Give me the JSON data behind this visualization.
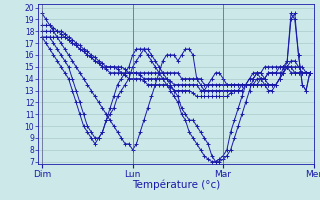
{
  "title": "",
  "xlabel": "Température (°c)",
  "ylabel": "",
  "bg_color": "#cce8e8",
  "plot_bg_color": "#cce8e8",
  "line_color": "#1a1aaa",
  "marker_color": "#1a1aaa",
  "grid_color": "#aacccc",
  "axis_color": "#1a1aaa",
  "text_color": "#1a1aaa",
  "ylim": [
    7,
    20
  ],
  "yticks": [
    7,
    8,
    9,
    10,
    11,
    12,
    13,
    14,
    15,
    16,
    17,
    18,
    19,
    20
  ],
  "day_positions": [
    0,
    24,
    48,
    72
  ],
  "day_labels": [
    "Dim",
    "Lun",
    "Mar",
    "Mer"
  ],
  "n_points": 72,
  "series": [
    [
      17.5,
      17.5,
      17.5,
      17.5,
      17.5,
      17.5,
      17.5,
      17.3,
      17.0,
      16.8,
      16.5,
      16.3,
      16.0,
      15.8,
      15.5,
      15.3,
      15.0,
      15.0,
      15.0,
      15.0,
      15.0,
      15.0,
      14.8,
      14.5,
      14.5,
      14.5,
      14.5,
      14.5,
      14.5,
      14.5,
      14.5,
      14.5,
      14.5,
      14.5,
      14.5,
      14.5,
      14.5,
      14.0,
      14.0,
      14.0,
      14.0,
      14.0,
      14.0,
      13.5,
      13.5,
      13.5,
      13.5,
      13.5,
      13.5,
      13.5,
      13.5,
      13.5,
      13.5,
      13.5,
      13.5,
      13.5,
      13.5,
      13.5,
      14.0,
      14.0,
      14.5,
      14.5,
      14.5,
      14.5,
      14.5,
      15.0,
      15.0,
      15.0,
      15.0,
      15.0,
      14.5,
      14.5
    ],
    [
      18.0,
      18.0,
      18.0,
      18.0,
      18.0,
      18.0,
      17.8,
      17.5,
      17.3,
      17.0,
      16.8,
      16.5,
      16.3,
      16.0,
      15.8,
      15.5,
      15.3,
      15.0,
      15.0,
      15.0,
      14.8,
      14.5,
      14.5,
      14.5,
      14.5,
      14.5,
      14.3,
      14.0,
      14.0,
      14.0,
      14.0,
      14.0,
      14.0,
      14.0,
      13.8,
      13.5,
      13.5,
      13.5,
      13.5,
      13.5,
      13.5,
      13.5,
      13.0,
      13.0,
      13.0,
      13.0,
      13.0,
      13.0,
      13.0,
      13.0,
      13.0,
      13.0,
      13.0,
      13.0,
      13.5,
      13.5,
      13.5,
      14.0,
      14.0,
      14.0,
      14.5,
      14.5,
      14.5,
      15.0,
      15.0,
      15.0,
      15.0,
      14.5,
      14.5,
      14.5,
      14.5,
      14.5
    ],
    [
      18.5,
      18.5,
      18.5,
      18.3,
      18.0,
      17.8,
      17.5,
      17.3,
      17.0,
      16.8,
      16.5,
      16.3,
      16.0,
      15.8,
      15.5,
      15.3,
      15.0,
      14.8,
      14.5,
      14.5,
      14.5,
      14.5,
      14.3,
      14.0,
      14.0,
      14.0,
      14.0,
      13.8,
      13.5,
      13.5,
      13.5,
      13.5,
      13.5,
      13.5,
      13.3,
      13.0,
      13.0,
      13.0,
      13.0,
      13.0,
      12.8,
      12.5,
      12.5,
      12.5,
      12.5,
      12.5,
      12.5,
      12.5,
      12.5,
      12.5,
      12.8,
      13.0,
      13.0,
      13.5,
      13.5,
      14.0,
      14.0,
      14.5,
      14.5,
      15.0,
      15.0,
      15.0,
      15.0,
      15.0,
      15.0,
      15.0,
      14.5,
      14.5,
      14.5,
      14.5,
      14.5,
      14.5
    ],
    [
      19.5,
      19.0,
      18.5,
      18.0,
      17.5,
      17.0,
      16.5,
      16.0,
      15.5,
      15.0,
      14.5,
      14.0,
      13.5,
      13.0,
      12.5,
      12.0,
      11.5,
      11.0,
      10.5,
      10.0,
      9.5,
      9.0,
      8.5,
      8.5,
      8.0,
      8.5,
      9.5,
      10.5,
      11.5,
      12.5,
      13.5,
      14.5,
      15.5,
      16.0,
      16.0,
      16.0,
      15.5,
      16.0,
      16.5,
      16.5,
      16.0,
      14.0,
      13.5,
      13.0,
      13.5,
      14.0,
      14.5,
      14.5,
      14.0,
      13.5,
      13.5,
      13.5,
      13.5,
      13.5,
      13.5,
      13.5,
      13.5,
      13.5,
      13.5,
      13.5,
      13.5,
      13.5,
      13.5,
      14.0,
      14.5,
      15.0,
      15.5,
      15.5,
      15.0,
      14.5,
      14.5,
      14.5
    ],
    [
      17.5,
      17.5,
      17.5,
      17.0,
      16.5,
      16.0,
      15.5,
      15.0,
      14.0,
      13.0,
      12.0,
      11.0,
      10.0,
      9.5,
      9.0,
      9.0,
      9.5,
      10.5,
      11.0,
      11.5,
      12.5,
      13.0,
      13.5,
      14.0,
      15.0,
      15.5,
      16.0,
      16.5,
      16.5,
      16.0,
      15.5,
      15.0,
      14.5,
      14.0,
      13.5,
      13.0,
      12.5,
      11.5,
      11.0,
      10.5,
      10.5,
      10.0,
      9.5,
      9.0,
      8.5,
      7.5,
      7.0,
      7.0,
      7.2,
      7.5,
      8.0,
      9.0,
      10.0,
      11.0,
      12.0,
      13.0,
      14.0,
      14.5,
      14.5,
      14.0,
      13.5,
      13.5,
      13.5,
      14.0,
      14.5,
      15.5,
      19.0,
      19.5,
      16.0,
      13.5,
      13.0,
      14.5
    ],
    [
      17.5,
      17.0,
      16.5,
      16.0,
      15.5,
      15.0,
      14.5,
      14.0,
      13.0,
      12.0,
      11.0,
      10.0,
      9.5,
      9.0,
      8.5,
      9.0,
      9.5,
      10.5,
      11.5,
      12.5,
      13.5,
      14.0,
      14.5,
      15.0,
      16.0,
      16.5,
      16.5,
      16.5,
      16.0,
      15.5,
      15.0,
      14.5,
      14.0,
      13.5,
      13.0,
      12.5,
      12.0,
      11.0,
      10.5,
      9.5,
      9.0,
      8.5,
      8.0,
      7.5,
      7.2,
      7.0,
      7.0,
      7.2,
      7.5,
      8.0,
      9.5,
      10.5,
      11.5,
      12.5,
      13.5,
      14.0,
      14.5,
      14.5,
      14.0,
      13.5,
      13.0,
      13.0,
      13.5,
      14.0,
      15.0,
      15.5,
      19.5,
      19.0,
      16.0,
      13.5,
      13.0,
      14.5
    ]
  ]
}
